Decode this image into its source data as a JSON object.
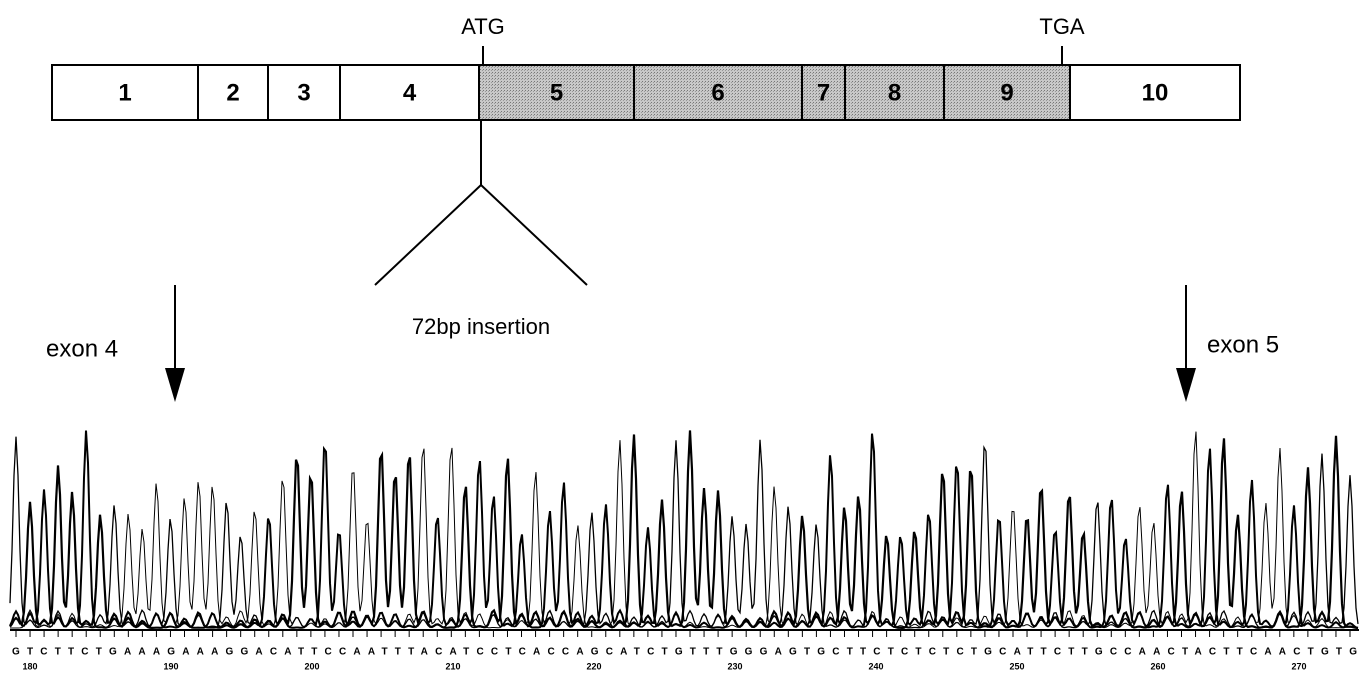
{
  "gene": {
    "start_codon": "ATG",
    "stop_codon": "TGA",
    "exons": [
      "1",
      "2",
      "3",
      "4",
      "5",
      "6",
      "7",
      "8",
      "9",
      "10"
    ],
    "insertion": "72bp insertion",
    "left_marker": "exon 4",
    "right_marker": "exon 5"
  },
  "trace": {
    "sequence": "GTCTTCTGAAAGAAAGGACATTCCAATTTACATCCTCACCAGCATCTGTTTGGGAGTGCTTCTCTCTCTGCATTCTTGCCAACTACTTCAACTGTG",
    "positions": [
      180,
      190,
      200,
      210,
      220,
      230,
      240,
      250,
      260,
      270
    ]
  }
}
